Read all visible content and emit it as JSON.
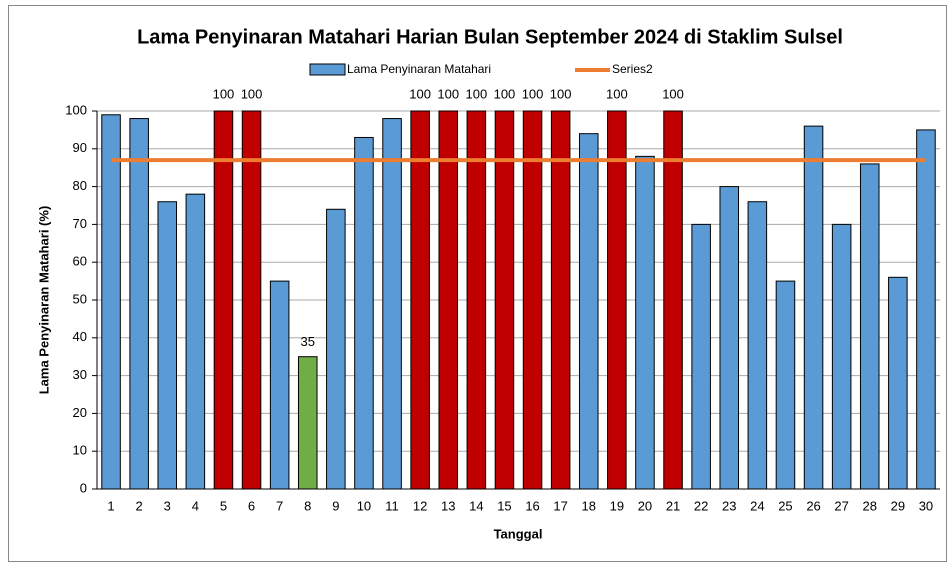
{
  "chart_data": {
    "type": "bar",
    "title": "Lama Penyinaran Matahari Harian Bulan September 2024 di Staklim Sulsel",
    "x_label": "Tanggal",
    "y_label": "Lama Penyinaran Matahari (%)",
    "categories": [
      "1",
      "2",
      "3",
      "4",
      "5",
      "6",
      "7",
      "8",
      "9",
      "10",
      "11",
      "12",
      "13",
      "14",
      "15",
      "16",
      "17",
      "18",
      "19",
      "20",
      "21",
      "22",
      "23",
      "24",
      "25",
      "26",
      "27",
      "28",
      "29",
      "30"
    ],
    "series": [
      {
        "name": "Lama Penyinaran Matahari",
        "type": "bar",
        "color": "#5b9bd5",
        "colors": [
          "#5b9bd5",
          "#5b9bd5",
          "#5b9bd5",
          "#5b9bd5",
          "#c00000",
          "#c00000",
          "#5b9bd5",
          "#70ad47",
          "#5b9bd5",
          "#5b9bd5",
          "#5b9bd5",
          "#c00000",
          "#c00000",
          "#c00000",
          "#c00000",
          "#c00000",
          "#c00000",
          "#5b9bd5",
          "#c00000",
          "#5b9bd5",
          "#c00000",
          "#5b9bd5",
          "#5b9bd5",
          "#5b9bd5",
          "#5b9bd5",
          "#5b9bd5",
          "#5b9bd5",
          "#5b9bd5",
          "#5b9bd5",
          "#5b9bd5"
        ],
        "values": [
          99,
          98,
          76,
          78,
          100,
          100,
          55,
          35,
          74,
          93,
          98,
          100,
          100,
          100,
          100,
          100,
          100,
          94,
          100,
          88,
          100,
          70,
          80,
          76,
          55,
          96,
          70,
          86,
          56,
          95
        ],
        "value_labels": [
          null,
          null,
          null,
          null,
          "100",
          "100",
          null,
          "35",
          null,
          null,
          null,
          "100",
          "100",
          "100",
          "100",
          "100",
          "100",
          null,
          "100",
          null,
          "100",
          null,
          null,
          null,
          null,
          null,
          null,
          null,
          null,
          null
        ]
      },
      {
        "name": "Series2",
        "type": "line",
        "color": "#ed7d31",
        "values": [
          87,
          87,
          87,
          87,
          87,
          87,
          87,
          87,
          87,
          87,
          87,
          87,
          87,
          87,
          87,
          87,
          87,
          87,
          87,
          87,
          87,
          87,
          87,
          87,
          87,
          87,
          87,
          87,
          87,
          87
        ]
      }
    ],
    "ylim": [
      0,
      100
    ],
    "yticks": [
      0,
      10,
      20,
      30,
      40,
      50,
      60,
      70,
      80,
      90,
      100
    ],
    "grid": true,
    "legend": "top"
  }
}
